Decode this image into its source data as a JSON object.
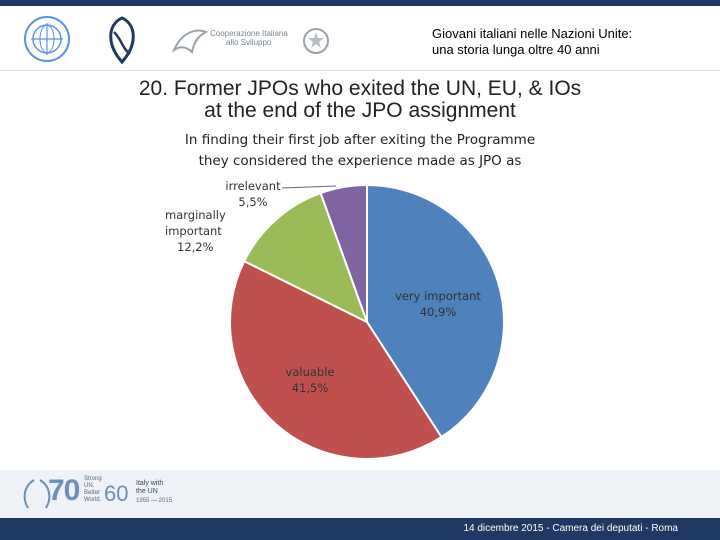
{
  "header": {
    "line1": "Giovani italiani nelle Nazioni Unite:",
    "line2": "una storia lunga oltre 40 anni",
    "logo_text_1": "Cooperazione Italiana",
    "logo_text_2": "allo Sviluppo"
  },
  "slide": {
    "title_line1": "20. Former JPOs who exited the UN, EU, & IOs",
    "title_line2": "at the end of the JPO assignment"
  },
  "chart_data": {
    "type": "pie",
    "title_line1": "In finding their first job after exiting the Programme",
    "title_line2": "they considered the experience made as JPO as",
    "slices": [
      {
        "label": "very important",
        "value": 40.9,
        "value_label": "40,9%",
        "color": "#4f81bd"
      },
      {
        "label": "valuable",
        "value": 41.5,
        "value_label": "41,5%",
        "color": "#c0504d"
      },
      {
        "label": "marginally important",
        "value": 12.2,
        "value_label": "12,2%",
        "color": "#9bbb59"
      },
      {
        "label": "irrelevant",
        "value": 5.5,
        "value_label": "5,5%",
        "color": "#8064a2"
      }
    ],
    "start_angle_deg": 0,
    "direction": "clockwise",
    "legend": "none"
  },
  "footer": {
    "text": "14 dicembre 2015 - Camera dei deputati - Roma",
    "logo70_number": "70",
    "logo70_tagline": "Strong UN. Better World.",
    "logo60_number": "60",
    "logo60_line1": "Italy with",
    "logo60_line2": "the UN",
    "logo60_years": "1955 — 2015"
  },
  "colors": {
    "navy": "#1f3864",
    "un_blue": "#5b92e5",
    "pie_border": "#ffffff"
  }
}
